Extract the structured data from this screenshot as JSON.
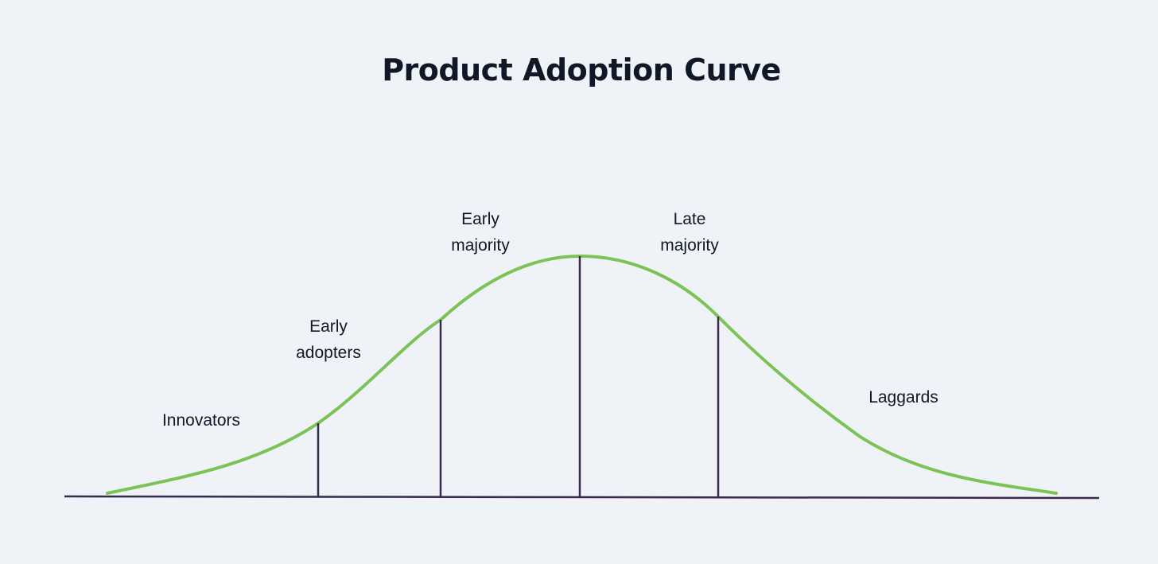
{
  "title": "Product Adoption Curve",
  "segments": [
    {
      "id": "innovators",
      "lines": [
        "Innovators"
      ]
    },
    {
      "id": "early-adopters",
      "lines": [
        "Early",
        "adopters"
      ]
    },
    {
      "id": "early-majority",
      "lines": [
        "Early",
        "majority"
      ]
    },
    {
      "id": "late-majority",
      "lines": [
        "Late",
        "majority"
      ]
    },
    {
      "id": "laggards",
      "lines": [
        "Laggards"
      ]
    }
  ],
  "colors": {
    "background": "#eff3f8",
    "curve": "#7cc355",
    "lines": "#3a2a4f",
    "text": "#101828"
  }
}
